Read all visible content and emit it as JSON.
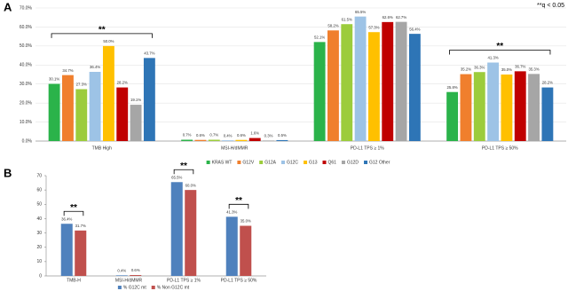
{
  "chart_data": [
    {
      "type": "bar",
      "panel": "A",
      "note": "**q < 0.05",
      "categories": [
        "TMB High",
        "MSI-H/dMMR",
        "PD-L1 TPS ≥ 1%",
        "PD-L1 TPS ≥ 50%"
      ],
      "significance": [
        "**",
        null,
        null,
        "**"
      ],
      "series": [
        {
          "name": "KRAS WT",
          "color": "#2bb34a",
          "values": [
            30.1,
            0.7,
            52.1,
            25.8
          ],
          "value_labels": [
            "30.1%",
            "0.7%",
            "52.1%",
            "25.8%"
          ]
        },
        {
          "name": "G12V",
          "color": "#f07f2d",
          "values": [
            34.7,
            0.6,
            58.2,
            35.2
          ],
          "value_labels": [
            "34.7%",
            "0.6%",
            "58.2%",
            "35.2%"
          ]
        },
        {
          "name": "G12A",
          "color": "#9ccc3c",
          "values": [
            27.3,
            0.7,
            61.5,
            36.3
          ],
          "value_labels": [
            "27.3%",
            "0.7%",
            "61.5%",
            "36.3%"
          ]
        },
        {
          "name": "G12C",
          "color": "#9dc3e6",
          "values": [
            36.4,
            0.4,
            65.5,
            41.3
          ],
          "value_labels": [
            "36.4%",
            "0.4%",
            "65.5%",
            "41.3%"
          ]
        },
        {
          "name": "G13",
          "color": "#ffc000",
          "values": [
            50.0,
            0.6,
            57.3,
            35.0
          ],
          "value_labels": [
            "50.0%",
            "0.6%",
            "57.3%",
            "35.0%"
          ]
        },
        {
          "name": "Q61",
          "color": "#c00000",
          "values": [
            28.2,
            1.6,
            62.6,
            36.7
          ],
          "value_labels": [
            "28.2%",
            "1.6%",
            "62.6%",
            "36.7%"
          ]
        },
        {
          "name": "G12D",
          "color": "#a6a6a6",
          "values": [
            19.1,
            0.3,
            62.7,
            35.3
          ],
          "value_labels": [
            "19.1%",
            "0.3%",
            "62.7%",
            "35.3%"
          ]
        },
        {
          "name": "G12 Other",
          "color": "#2e75b6",
          "values": [
            43.7,
            0.5,
            56.4,
            28.2
          ],
          "value_labels": [
            "43.7%",
            "0.5%",
            "56.4%",
            "28.2%"
          ]
        }
      ],
      "ylim": [
        0,
        70
      ],
      "yticks": [
        {
          "value": 0,
          "label": "0.0%"
        },
        {
          "value": 10,
          "label": "10.0%"
        },
        {
          "value": 20,
          "label": "20.0%"
        },
        {
          "value": 30,
          "label": "30.0%"
        },
        {
          "value": 40,
          "label": "40.0%"
        },
        {
          "value": 50,
          "label": "50.0%"
        },
        {
          "value": 60,
          "label": "60.0%"
        },
        {
          "value": 70,
          "label": "70.0%"
        }
      ],
      "grid": true
    },
    {
      "type": "bar",
      "panel": "B",
      "categories": [
        "TMB-H",
        "MSI-H/dMMR",
        "PD-L1 TPS ≥ 1%",
        "PD-L1 TPS ≥ 50%"
      ],
      "significance": [
        "**",
        null,
        "**",
        "**"
      ],
      "series": [
        {
          "name": "% G12C mt",
          "color": "#4f81bd",
          "values": [
            36.4,
            0.4,
            65.5,
            41.3
          ],
          "value_labels": [
            "36.4%",
            "0.4%",
            "65.5%",
            "41.3%"
          ]
        },
        {
          "name": "% Non G12C mt",
          "color": "#c0504d",
          "values": [
            31.7,
            0.6,
            60.0,
            35.0
          ],
          "value_labels": [
            "31.7%",
            "0.6%",
            "60.0%",
            "35.0%"
          ]
        }
      ],
      "ylim": [
        0,
        70
      ],
      "yticks": [
        0,
        10,
        20,
        30,
        40,
        50,
        60,
        70
      ],
      "grid": false
    }
  ]
}
